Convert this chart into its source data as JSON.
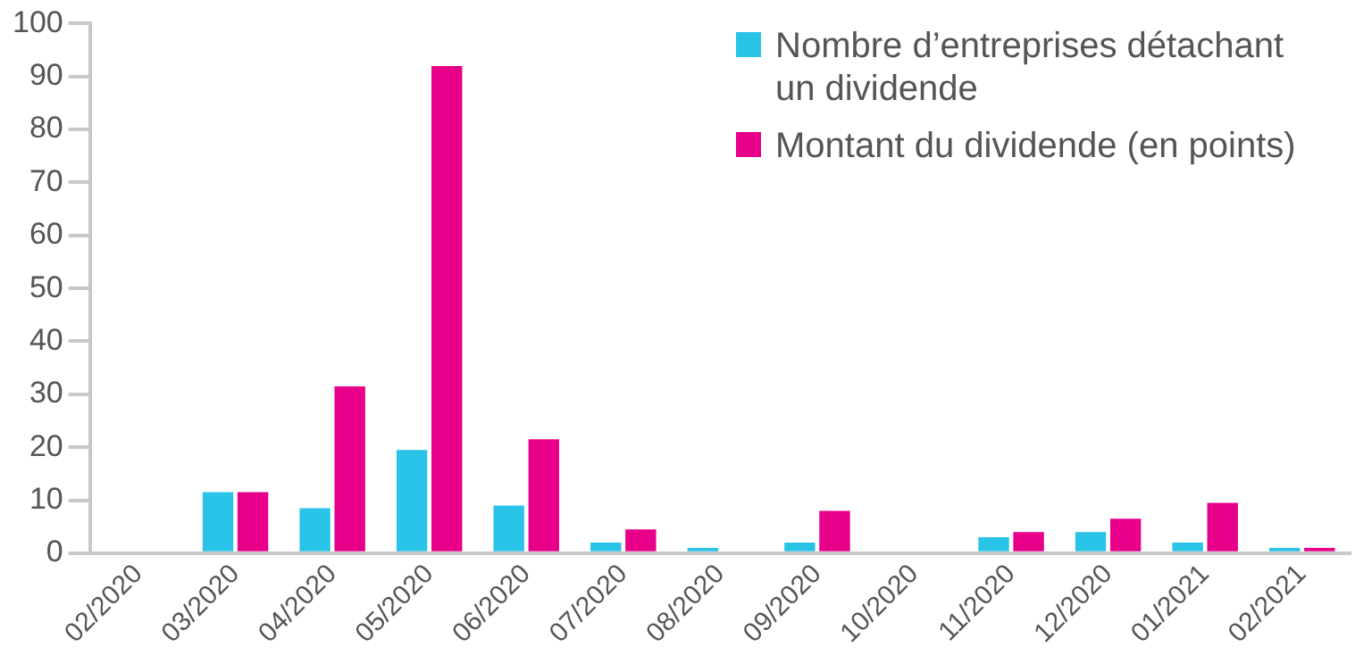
{
  "chart_data": {
    "type": "bar",
    "categories": [
      "02/2020",
      "03/2020",
      "04/2020",
      "05/2020",
      "06/2020",
      "07/2020",
      "08/2020",
      "09/2020",
      "10/2020",
      "11/2020",
      "12/2020",
      "01/2021",
      "02/2021"
    ],
    "series": [
      {
        "name": "Nombre d’entreprises détachant un dividende",
        "color": "#29c3e8",
        "values": [
          0,
          11.5,
          8.5,
          19.5,
          9,
          2,
          1,
          2,
          0,
          3,
          4,
          2,
          1
        ]
      },
      {
        "name": "Montant du dividende (en points)",
        "color": "#e8008a",
        "values": [
          0,
          11.5,
          31.5,
          92,
          21.5,
          4.5,
          0,
          8,
          0,
          4,
          6.5,
          9.5,
          1
        ]
      }
    ],
    "ylim": [
      0,
      100
    ],
    "yticks": [
      0,
      10,
      20,
      30,
      40,
      50,
      60,
      70,
      80,
      90,
      100
    ],
    "grid": false,
    "legend": "top right"
  }
}
